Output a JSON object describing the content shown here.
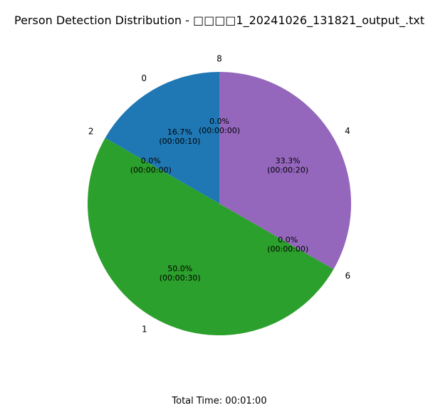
{
  "chart_data": {
    "type": "pie",
    "title": "Person Detection Distribution - □□□□1_20241026_131821_output_.txt",
    "slices": [
      {
        "label": "0",
        "value": 16.7,
        "pct_label": "16.7%",
        "time_label": "(00:00:10)",
        "color": "#1f77b4"
      },
      {
        "label": "2",
        "value": 0.0,
        "pct_label": "0.0%",
        "time_label": "(00:00:00)",
        "color": "#ff7f0e"
      },
      {
        "label": "1",
        "value": 50.0,
        "pct_label": "50.0%",
        "time_label": "(00:00:30)",
        "color": "#2ca02c"
      },
      {
        "label": "6",
        "value": 0.0,
        "pct_label": "0.0%",
        "time_label": "(00:00:00)",
        "color": "#d62728"
      },
      {
        "label": "4",
        "value": 33.3,
        "pct_label": "33.3%",
        "time_label": "(00:00:20)",
        "color": "#9467bd"
      },
      {
        "label": "8",
        "value": 0.0,
        "pct_label": "0.0%",
        "time_label": "(00:00:00)",
        "color": "#8c564b"
      }
    ],
    "start_angle_deg": 90,
    "direction": "counterclockwise",
    "footer": "Total Time: 00:01:00"
  }
}
